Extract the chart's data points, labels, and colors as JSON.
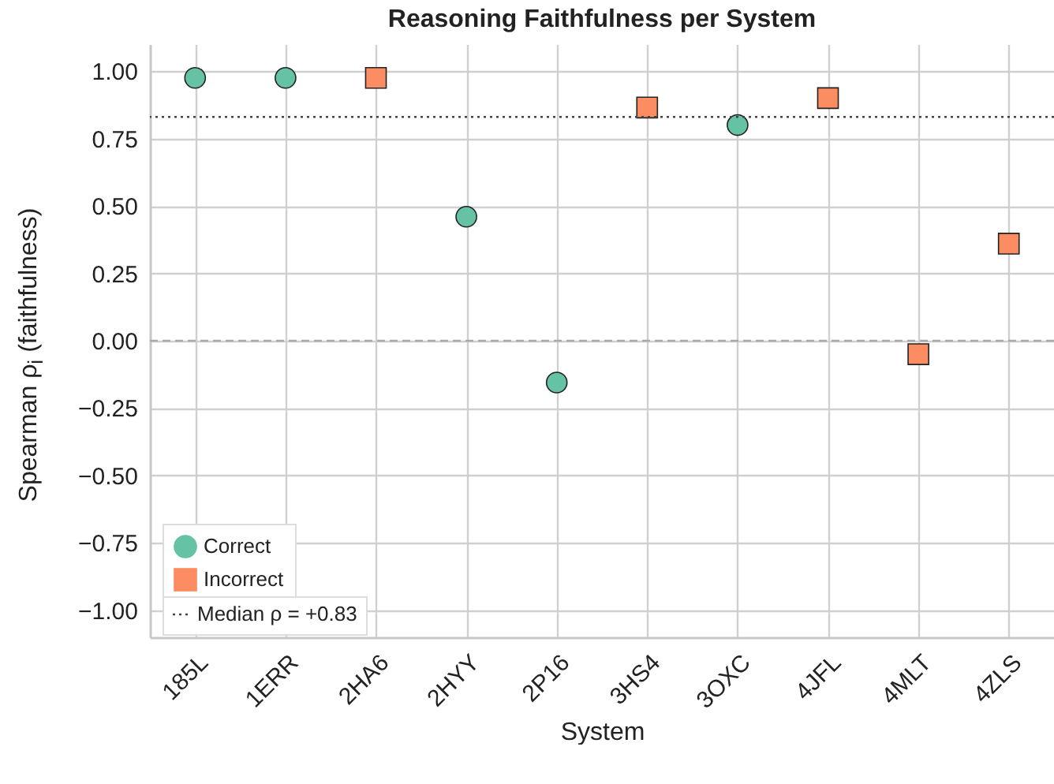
{
  "chart_data": {
    "type": "scatter",
    "title": "Reasoning Faithfulness per System",
    "xlabel": "System",
    "ylabel": "Spearman ρ$_{i}$ (faithfulness)",
    "categories": [
      "185L",
      "1ERR",
      "2HA6",
      "2HYY",
      "2P16",
      "3HS4",
      "3OXC",
      "4JFL",
      "4MLT",
      "4ZLS"
    ],
    "series": [
      {
        "name": "Correct",
        "color": "#66c2a5",
        "marker": "circle",
        "values": [
          0.975,
          0.975,
          null,
          0.46,
          -0.155,
          null,
          0.8,
          null,
          null,
          null
        ]
      },
      {
        "name": "Incorrect",
        "color": "#fc8d62",
        "marker": "square",
        "values": [
          null,
          null,
          0.975,
          null,
          null,
          0.865,
          null,
          0.9,
          -0.05,
          0.36
        ]
      }
    ],
    "ylim": [
      -1.1,
      1.1
    ],
    "yticks": [
      {
        "value": -1,
        "label": "−1.00"
      },
      {
        "value": -0.75,
        "label": "−0.75"
      },
      {
        "value": -0.5,
        "label": "−0.50"
      },
      {
        "value": -0.25,
        "label": "−0.25"
      },
      {
        "value": 0,
        "label": "0.00"
      },
      {
        "value": 0.25,
        "label": "0.25"
      },
      {
        "value": 0.5,
        "label": "0.50"
      },
      {
        "value": 0.75,
        "label": "0.75"
      },
      {
        "value": 1,
        "label": "1.00"
      }
    ],
    "ref_lines": [
      {
        "axis": "y",
        "value": 0.83,
        "label": "Median ρ = +0.83",
        "color": "#444444",
        "line_style": "dotted"
      },
      {
        "axis": "y",
        "value": 0,
        "color": "#aaaaaa",
        "line_style": "dashed"
      }
    ],
    "grid": true,
    "legend": "bottom left"
  }
}
